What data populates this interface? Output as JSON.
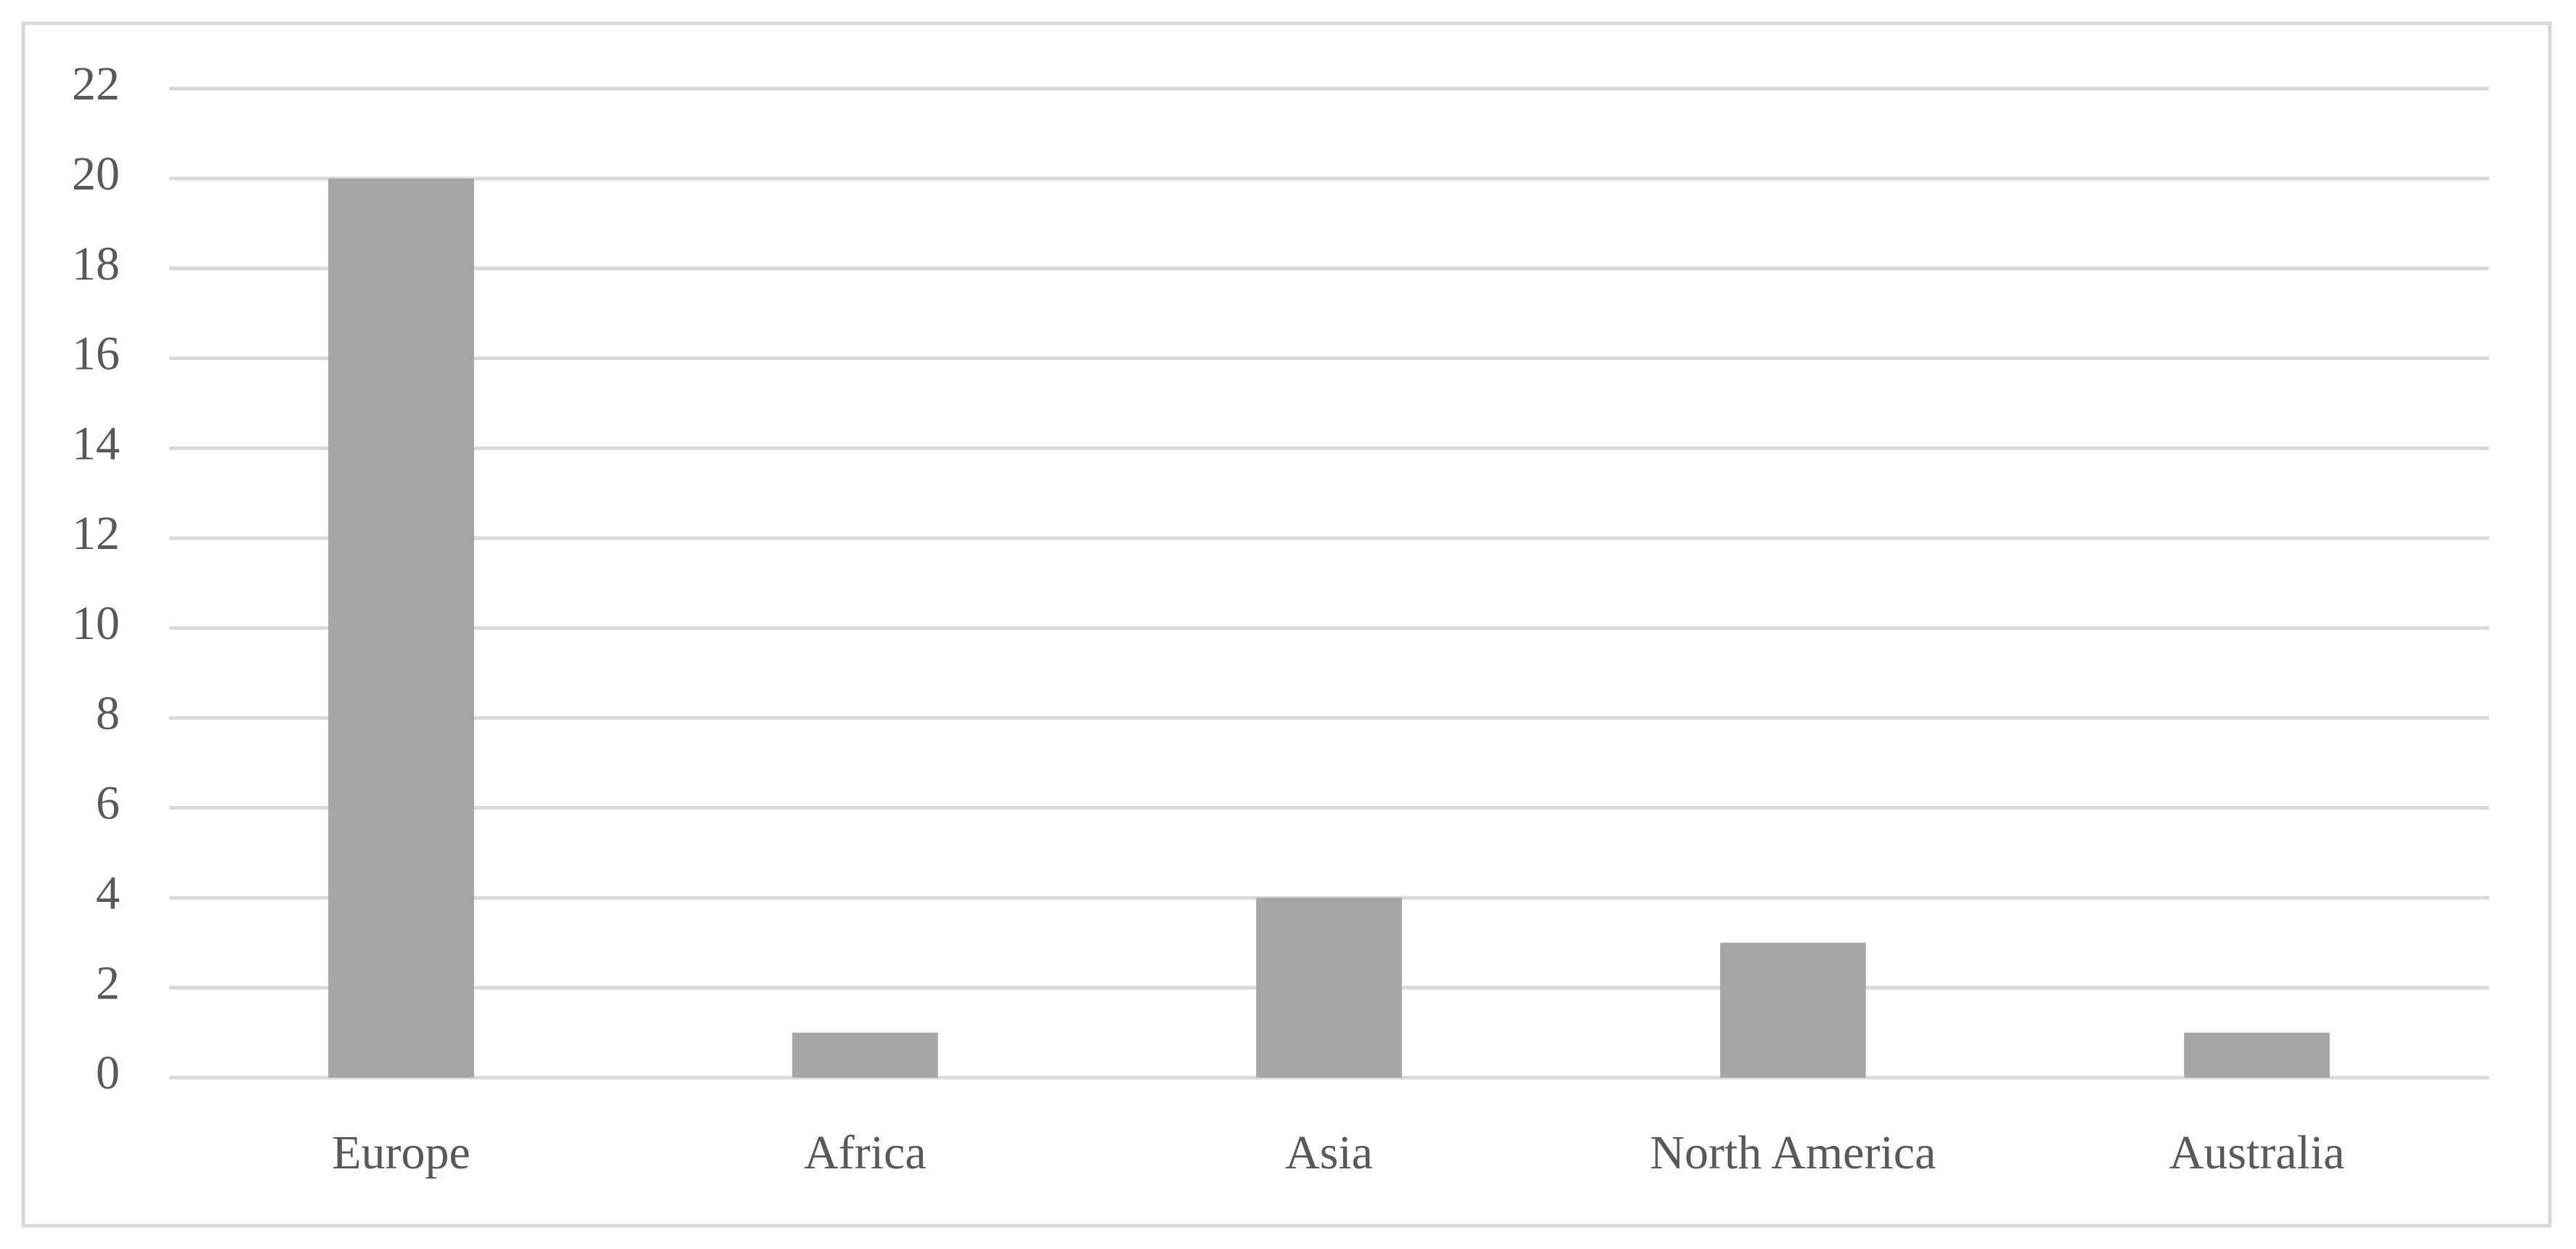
{
  "chart_data": {
    "type": "bar",
    "categories": [
      "Europe",
      "Africa",
      "Asia",
      "North America",
      "Australia"
    ],
    "values": [
      20,
      1,
      4,
      3,
      1
    ],
    "color": "#a5a5a5",
    "ylim": [
      0,
      22
    ],
    "yticks": [
      0,
      2,
      4,
      6,
      8,
      10,
      12,
      14,
      16,
      18,
      20,
      22
    ],
    "grid": true
  }
}
